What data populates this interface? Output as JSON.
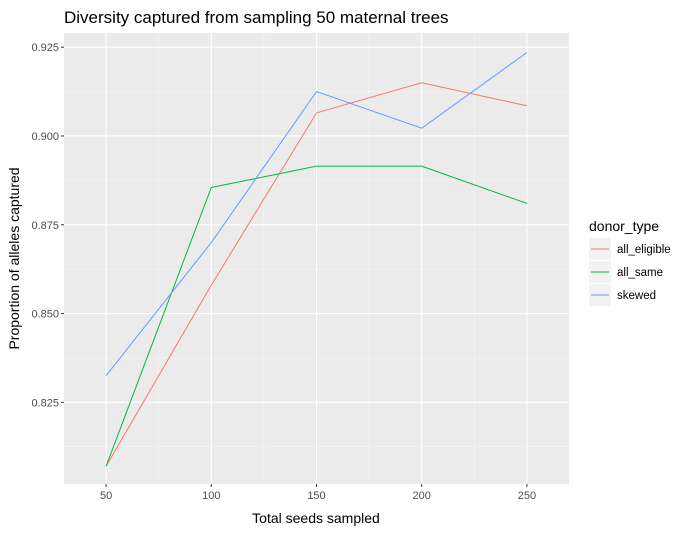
{
  "chart_data": {
    "type": "line",
    "title": "Diversity captured from sampling 50 maternal trees",
    "xlabel": "Total seeds sampled",
    "ylabel": "Proportion of alleles captured",
    "x": [
      50,
      100,
      150,
      200,
      250
    ],
    "xlim": [
      30,
      270
    ],
    "ylim": [
      0.802,
      0.929
    ],
    "xticks": [
      "50",
      "100",
      "150",
      "200",
      "250"
    ],
    "yticks": [
      "0.825",
      "0.850",
      "0.875",
      "0.900",
      "0.925"
    ],
    "grid": true,
    "legend_title": "donor_type",
    "legend_position": "right",
    "series": [
      {
        "name": "all_eligible",
        "color": "#F8766D",
        "values": [
          0.807,
          0.858,
          0.9065,
          0.915,
          0.9085
        ]
      },
      {
        "name": "all_same",
        "color": "#00BA38",
        "values": [
          0.807,
          0.8855,
          0.8915,
          0.8915,
          0.881
        ]
      },
      {
        "name": "skewed",
        "color": "#619CFF",
        "values": [
          0.8325,
          0.87,
          0.9125,
          0.9022,
          0.9235
        ]
      }
    ]
  }
}
